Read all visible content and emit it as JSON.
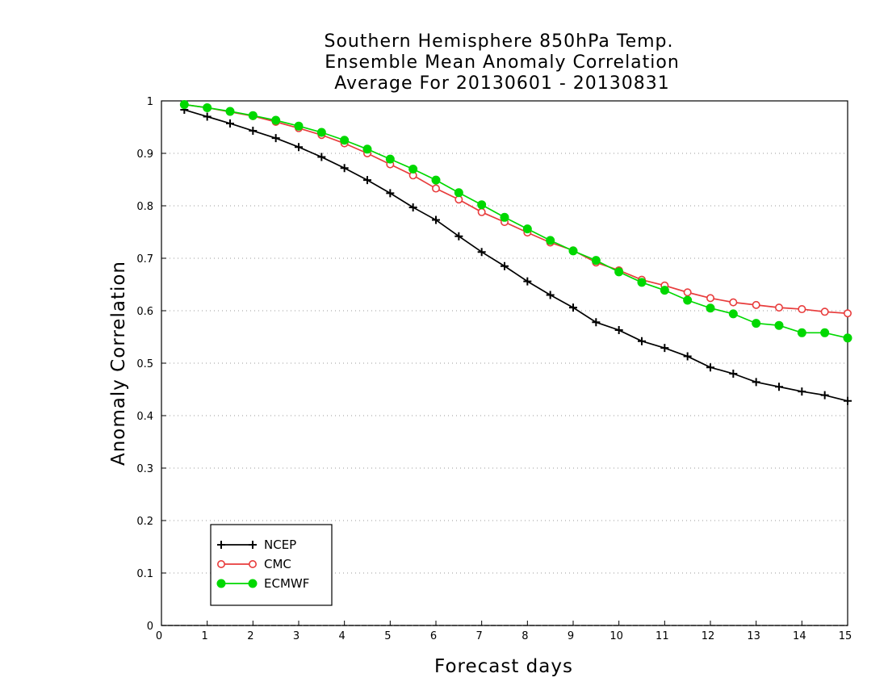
{
  "chart_data": {
    "type": "line",
    "title": [
      "Southern Hemisphere 850hPa Temp.",
      "Ensemble Mean Anomaly Correlation",
      "Average For 20130601 - 20130831"
    ],
    "xlabel": "Forecast days",
    "ylabel": "Anomaly Correlation",
    "xlim": [
      0,
      15
    ],
    "ylim": [
      0,
      1
    ],
    "xticks": [
      "0",
      "1",
      "2",
      "3",
      "4",
      "5",
      "6",
      "7",
      "8",
      "9",
      "10",
      "11",
      "12",
      "13",
      "14",
      "15"
    ],
    "yticks": [
      "0",
      "0.1",
      "0.2",
      "0.3",
      "0.4",
      "0.5",
      "0.6",
      "0.7",
      "0.8",
      "0.9",
      "1"
    ],
    "grid": "horizontal dotted",
    "legend_position": "bottom-left",
    "x": [
      0.5,
      1,
      1.5,
      2,
      2.5,
      3,
      3.5,
      4,
      4.5,
      5,
      5.5,
      6,
      6.5,
      7,
      7.5,
      8,
      8.5,
      9,
      9.5,
      10,
      10.5,
      11,
      11.5,
      12,
      12.5,
      13,
      13.5,
      14,
      14.5,
      15
    ],
    "series": [
      {
        "name": "NCEP",
        "color": "#000000",
        "marker": "plus",
        "values": [
          0.983,
          0.97,
          0.957,
          0.943,
          0.929,
          0.912,
          0.893,
          0.872,
          0.849,
          0.824,
          0.797,
          0.773,
          0.742,
          0.712,
          0.685,
          0.656,
          0.63,
          0.606,
          0.578,
          0.563,
          0.542,
          0.529,
          0.513,
          0.492,
          0.48,
          0.464,
          0.455,
          0.446,
          0.439,
          0.428
        ]
      },
      {
        "name": "CMC",
        "color": "#e83c3c",
        "marker": "open-circle",
        "values": [
          0.993,
          0.987,
          0.979,
          0.971,
          0.96,
          0.948,
          0.935,
          0.919,
          0.9,
          0.879,
          0.858,
          0.833,
          0.812,
          0.788,
          0.769,
          0.749,
          0.73,
          0.715,
          0.692,
          0.677,
          0.659,
          0.648,
          0.635,
          0.624,
          0.616,
          0.611,
          0.606,
          0.603,
          0.598,
          0.595
        ]
      },
      {
        "name": "ECMWF",
        "color": "#00d800",
        "marker": "filled-circle",
        "values": [
          0.993,
          0.987,
          0.98,
          0.972,
          0.963,
          0.952,
          0.94,
          0.925,
          0.908,
          0.889,
          0.87,
          0.849,
          0.825,
          0.802,
          0.778,
          0.756,
          0.734,
          0.714,
          0.696,
          0.674,
          0.654,
          0.639,
          0.62,
          0.605,
          0.594,
          0.576,
          0.572,
          0.558,
          0.558,
          0.548
        ]
      }
    ]
  }
}
